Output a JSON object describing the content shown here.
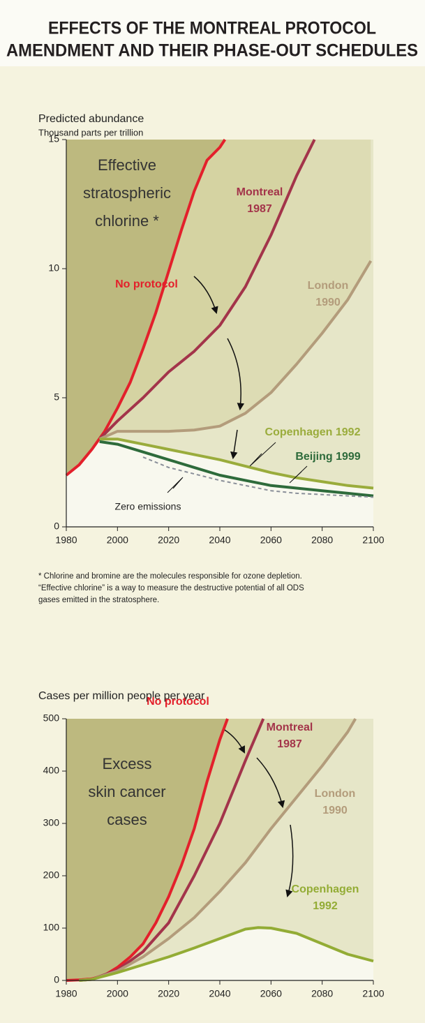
{
  "title": [
    "EFFECTS OF THE MONTREAL PROTOCOL",
    "AMENDMENT AND THEIR PHASE-OUT SCHEDULES"
  ],
  "footnote": [
    "* Chlorine and bromine are the molecules responsible for ozone depletion.",
    "“Effective chlorine” is a way to measure the destructive potential of all ODS",
    "gases emitted in the stratosphere."
  ],
  "chart_data": [
    {
      "type": "line",
      "ylabel": [
        "Predicted abundance",
        "Thousand parts per trillion"
      ],
      "main_label": [
        "Effective",
        "stratospheric",
        "chlorine *"
      ],
      "xlim": [
        1980,
        2100
      ],
      "xticks": [
        1980,
        2000,
        2020,
        2040,
        2060,
        2080,
        2100
      ],
      "ylim": [
        0,
        15
      ],
      "yticks": [
        0,
        5,
        10,
        15
      ],
      "series": [
        {
          "label": [
            "No protocol"
          ],
          "color": "#e3202b",
          "fill": "#bdb97f",
          "x": [
            1980,
            1985,
            1990,
            1995,
            2000,
            2005,
            2010,
            2015,
            2020,
            2025,
            2030,
            2035,
            2040,
            2042
          ],
          "values": [
            2.0,
            2.4,
            3.0,
            3.7,
            4.6,
            5.6,
            6.9,
            8.3,
            9.9,
            11.5,
            13.0,
            14.2,
            14.7,
            15
          ]
        },
        {
          "label": [
            "Montreal",
            "1987"
          ],
          "color": "#a3344a",
          "fill": "#d5d3a2",
          "x": [
            1993,
            2000,
            2010,
            2020,
            2030,
            2040,
            2050,
            2060,
            2070,
            2077
          ],
          "values": [
            3.4,
            4.1,
            5.0,
            6.0,
            6.8,
            7.8,
            9.3,
            11.3,
            13.6,
            15
          ]
        },
        {
          "label": [
            "London",
            "1990"
          ],
          "color": "#b39c7b",
          "fill": "#dddcb4",
          "x": [
            1993,
            2000,
            2010,
            2020,
            2030,
            2040,
            2050,
            2060,
            2070,
            2080,
            2090,
            2099
          ],
          "values": [
            3.4,
            3.7,
            3.7,
            3.7,
            3.75,
            3.9,
            4.4,
            5.2,
            6.3,
            7.5,
            8.8,
            10.3
          ]
        },
        {
          "label": [
            "Copenhagen 1992"
          ],
          "color": "#9aac3c",
          "fill": "#e6e6c8",
          "x": [
            1993,
            2000,
            2010,
            2020,
            2030,
            2040,
            2050,
            2060,
            2070,
            2080,
            2090,
            2100
          ],
          "values": [
            3.4,
            3.4,
            3.2,
            3.0,
            2.8,
            2.6,
            2.35,
            2.1,
            1.9,
            1.75,
            1.6,
            1.5
          ]
        },
        {
          "label": [
            "Beijing 1999"
          ],
          "color": "#2e6b3b",
          "x": [
            1993,
            2000,
            2010,
            2020,
            2030,
            2040,
            2050,
            2060,
            2070,
            2080,
            2090,
            2100
          ],
          "values": [
            3.3,
            3.2,
            2.9,
            2.6,
            2.3,
            2.0,
            1.8,
            1.6,
            1.5,
            1.4,
            1.3,
            1.2
          ]
        },
        {
          "label": [
            "Zero emissions"
          ],
          "color": "#8a8f99",
          "dashed": true,
          "x": [
            2010,
            2020,
            2030,
            2040,
            2050,
            2060,
            2070,
            2080,
            2090,
            2100
          ],
          "values": [
            2.7,
            2.3,
            2.05,
            1.8,
            1.6,
            1.4,
            1.3,
            1.25,
            1.2,
            1.15
          ]
        }
      ]
    },
    {
      "type": "line",
      "ylabel": [
        "Cases per million people per year"
      ],
      "main_label": [
        "Excess",
        "skin cancer",
        "cases"
      ],
      "xlim": [
        1980,
        2100
      ],
      "xticks": [
        1980,
        2000,
        2020,
        2040,
        2060,
        2080,
        2100
      ],
      "ylim": [
        0,
        500
      ],
      "yticks": [
        0,
        100,
        200,
        300,
        400,
        500
      ],
      "series": [
        {
          "label": [
            "No protocol"
          ],
          "color": "#e3202b",
          "fill": "#bdb97f",
          "x": [
            1980,
            1985,
            1990,
            1995,
            2000,
            2005,
            2010,
            2015,
            2020,
            2025,
            2030,
            2035,
            2040,
            2043
          ],
          "values": [
            0,
            1,
            3,
            10,
            25,
            45,
            70,
            110,
            160,
            220,
            290,
            380,
            460,
            500
          ]
        },
        {
          "label": [
            "Montreal",
            "1987"
          ],
          "color": "#a3344a",
          "fill": "#d5d3a2",
          "x": [
            1985,
            1990,
            2000,
            2010,
            2020,
            2030,
            2040,
            2050,
            2057
          ],
          "values": [
            0,
            2,
            20,
            55,
            110,
            200,
            300,
            420,
            500
          ]
        },
        {
          "label": [
            "London",
            "1990"
          ],
          "color": "#b39c7b",
          "fill": "#dddcb4",
          "x": [
            1985,
            1990,
            2000,
            2010,
            2020,
            2030,
            2040,
            2050,
            2060,
            2070,
            2080,
            2090,
            2093
          ],
          "values": [
            0,
            2,
            18,
            45,
            80,
            120,
            170,
            225,
            290,
            350,
            410,
            475,
            500
          ]
        },
        {
          "label": [
            "Copenhagen",
            "1992"
          ],
          "color": "#93ac35",
          "fill": "#e6e6c8",
          "x": [
            1985,
            1990,
            2000,
            2010,
            2020,
            2030,
            2040,
            2050,
            2055,
            2060,
            2070,
            2080,
            2090,
            2100
          ],
          "values": [
            0,
            2,
            15,
            30,
            45,
            62,
            80,
            98,
            101,
            100,
            90,
            70,
            50,
            37
          ]
        }
      ]
    }
  ]
}
